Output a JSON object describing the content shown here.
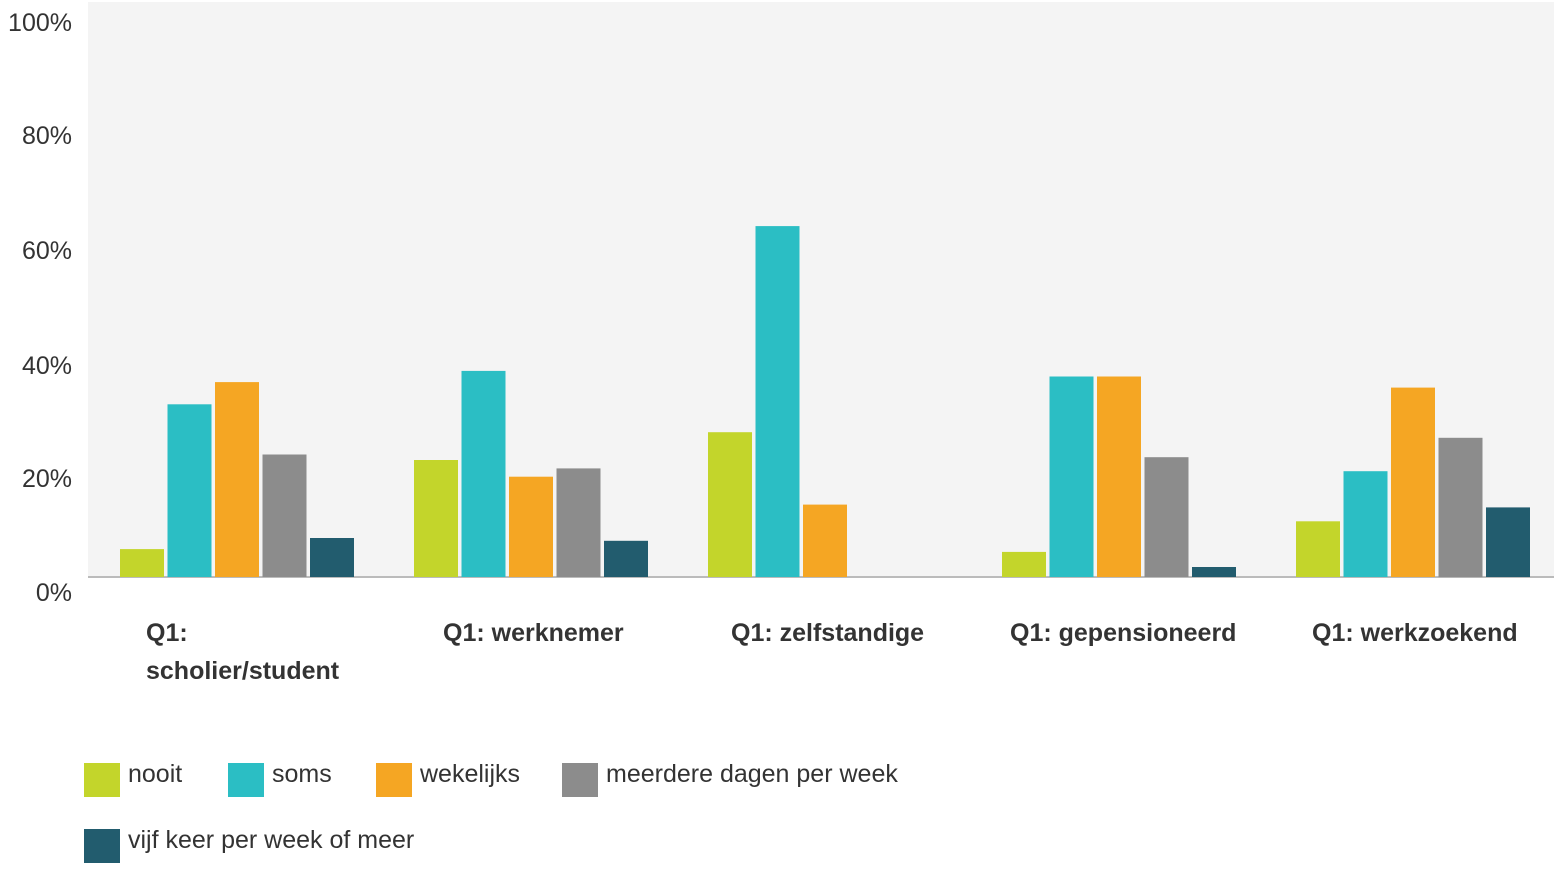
{
  "chart_data": {
    "type": "bar",
    "categories": [
      "Q1: scholier/student",
      "Q1: werknemer",
      "Q1: zelfstandige",
      "Q1: gepensioneerd",
      "Q1: werkzoekend"
    ],
    "series": [
      {
        "name": "nooit",
        "color": "#c3d52b",
        "values": [
          5,
          21,
          26,
          4.5,
          10
        ]
      },
      {
        "name": "soms",
        "color": "#2bbec4",
        "values": [
          31,
          37,
          63,
          36,
          19
        ]
      },
      {
        "name": "wekelijks",
        "color": "#f5a623",
        "values": [
          35,
          18,
          13,
          36,
          34
        ]
      },
      {
        "name": "meerdere dagen per week",
        "color": "#8c8c8c",
        "values": [
          22,
          19.5,
          0,
          21.5,
          25
        ]
      },
      {
        "name": "vijf keer per week of meer",
        "color": "#225c6e",
        "values": [
          7,
          6.5,
          0,
          1.8,
          12.5
        ]
      }
    ],
    "yticks": [
      "0%",
      "20%",
      "40%",
      "60%",
      "80%",
      "100%"
    ],
    "ylim": [
      0,
      100
    ],
    "grid": false,
    "legend_position": "bottom-left"
  }
}
